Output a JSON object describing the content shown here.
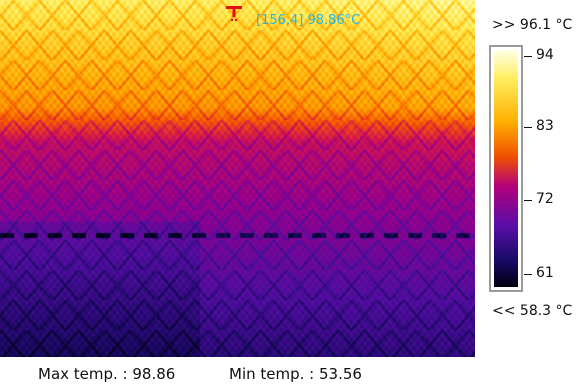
{
  "image": {
    "description_colors": {
      "hot": "#ffffa0",
      "warm": "#ff8a00",
      "mid": "#c0007a",
      "cool": "#4a0fa0",
      "cold": "#050020"
    }
  },
  "marker": {
    "readout": "[156,4]  98.86°C"
  },
  "scale": {
    "max_label": ">> 96.1 °C",
    "min_label": "<< 58.3 °C",
    "ticks": [
      "94",
      "83",
      "72",
      "61"
    ]
  },
  "footer": {
    "max_temp": "Max temp. : 98.86",
    "min_temp": "Min temp. : 53.56"
  }
}
